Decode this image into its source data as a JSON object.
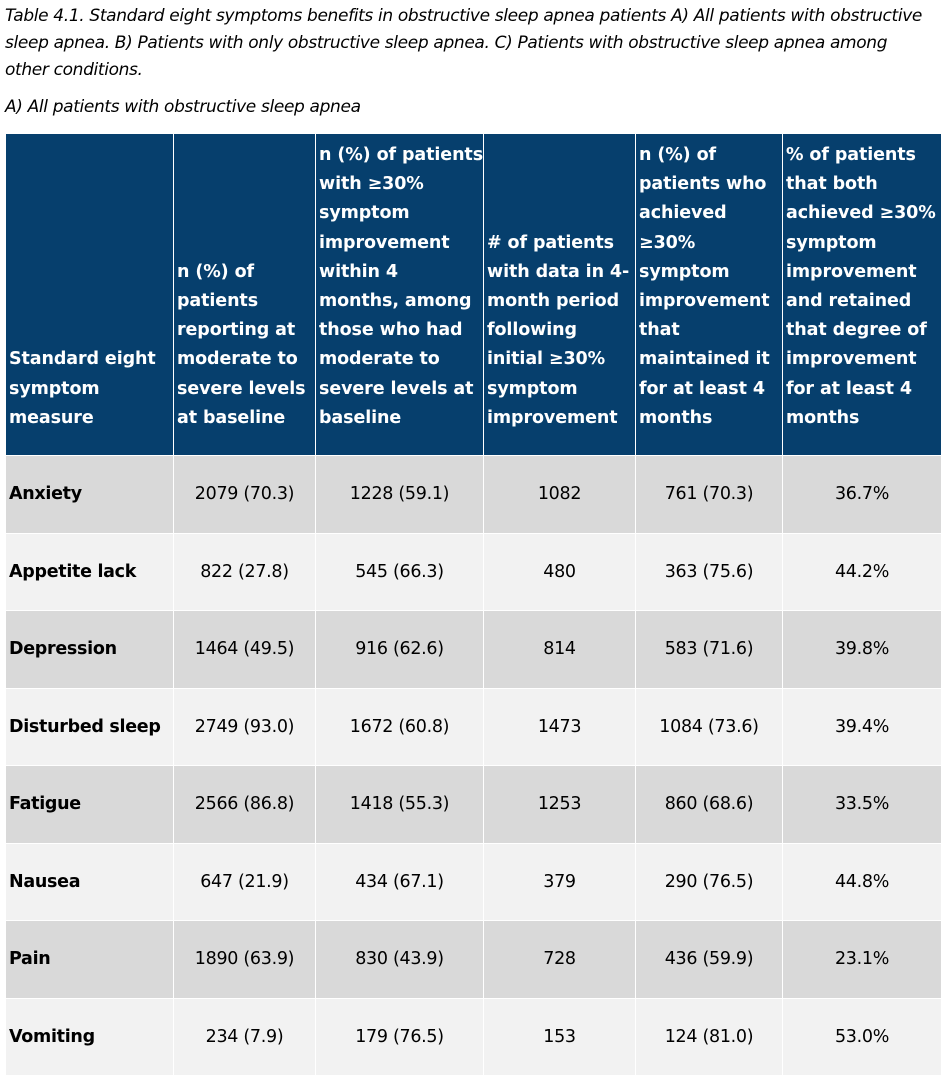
{
  "caption": "Table 4.1. Standard eight symptoms benefits in obstructive sleep apnea patients A) All patients with obstructive sleep apnea. B) Patients with only obstructive sleep apnea. C) Patients with obstructive sleep apnea among other conditions.",
  "subtitle": "A) All patients with obstructive sleep apnea",
  "table": {
    "headers": [
      "Standard eight symptom measure",
      "n (%) of patients reporting at moderate to severe levels at baseline",
      "n (%) of patients with ≥30% symptom improvement within 4 months, among those who had moderate to severe levels at baseline",
      "# of patients with data in 4-month period following initial ≥30% symptom improvement",
      "n (%) of patients who achieved ≥30% symptom improvement that maintained it for at least 4 months",
      "% of patients that both achieved ≥30% symptom improvement and retained that degree of improvement for at least 4 months"
    ],
    "rows": [
      [
        "Anxiety",
        "2079 (70.3)",
        "1228 (59.1)",
        "1082",
        "761 (70.3)",
        "36.7%"
      ],
      [
        "Appetite lack",
        "822 (27.8)",
        "545 (66.3)",
        "480",
        "363 (75.6)",
        "44.2%"
      ],
      [
        "Depression",
        "1464 (49.5)",
        "916 (62.6)",
        "814",
        "583 (71.6)",
        "39.8%"
      ],
      [
        "Disturbed sleep",
        "2749 (93.0)",
        "1672 (60.8)",
        "1473",
        "1084 (73.6)",
        "39.4%"
      ],
      [
        "Fatigue",
        "2566 (86.8)",
        "1418 (55.3)",
        "1253",
        "860 (68.6)",
        "33.5%"
      ],
      [
        "Nausea",
        "647 (21.9)",
        "434 (67.1)",
        "379",
        "290 (76.5)",
        "44.8%"
      ],
      [
        "Pain",
        "1890 (63.9)",
        "830 (43.9)",
        "728",
        "436 (59.9)",
        "23.1%"
      ],
      [
        "Vomiting",
        "234 (7.9)",
        "179 (76.5)",
        "153",
        "124 (81.0)",
        "53.0%"
      ]
    ]
  },
  "colors": {
    "header_bg": "#063f6d",
    "row_dark": "#d9d9d9",
    "row_light": "#f2f2f2"
  }
}
